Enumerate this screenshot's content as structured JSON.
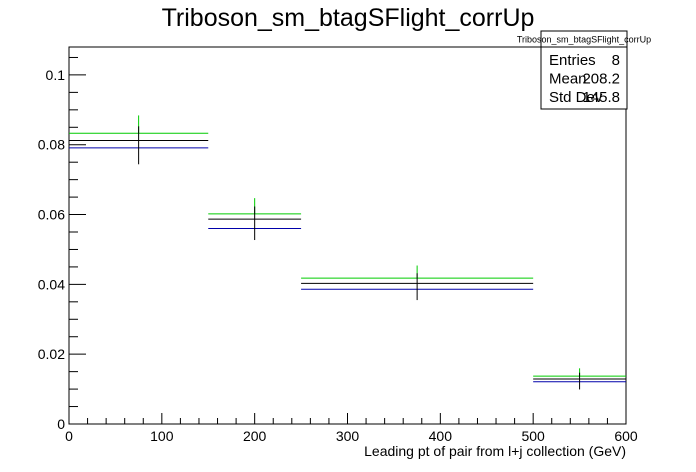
{
  "chart_data": {
    "type": "histogram",
    "title": "Triboson_sm_btagSFlight_corrUp",
    "xlabel": "Leading pt of pair from l+j collection (GeV)",
    "ylabel": "",
    "xlim": [
      0,
      600
    ],
    "ylim": [
      0,
      0.108
    ],
    "x_ticks": [
      "0",
      "100",
      "200",
      "300",
      "400",
      "500",
      "600"
    ],
    "y_ticks": [
      "0",
      "0.02",
      "0.04",
      "0.06",
      "0.08",
      "0.1"
    ],
    "bins": [
      [
        0,
        150
      ],
      [
        150,
        250
      ],
      [
        250,
        500
      ],
      [
        500,
        600
      ]
    ],
    "series": [
      {
        "color": "#00cc00",
        "values": [
          0.0833,
          0.0602,
          0.0418,
          0.0137
        ]
      },
      {
        "color": "#000000",
        "values": [
          0.0812,
          0.0587,
          0.0403,
          0.0129
        ],
        "errors": [
          0.0068,
          0.006,
          0.0048,
          0.003
        ]
      },
      {
        "color": "#0000aa",
        "values": [
          0.0791,
          0.056,
          0.0386,
          0.0121
        ]
      }
    ],
    "stats": {
      "title": "Triboson_sm_btagSFlight_corrUp",
      "rows": [
        {
          "label": "Entries",
          "value": "8"
        },
        {
          "label": "Mean",
          "value": "208.2"
        },
        {
          "label": "Std Dev",
          "value": "145.8"
        }
      ]
    }
  }
}
